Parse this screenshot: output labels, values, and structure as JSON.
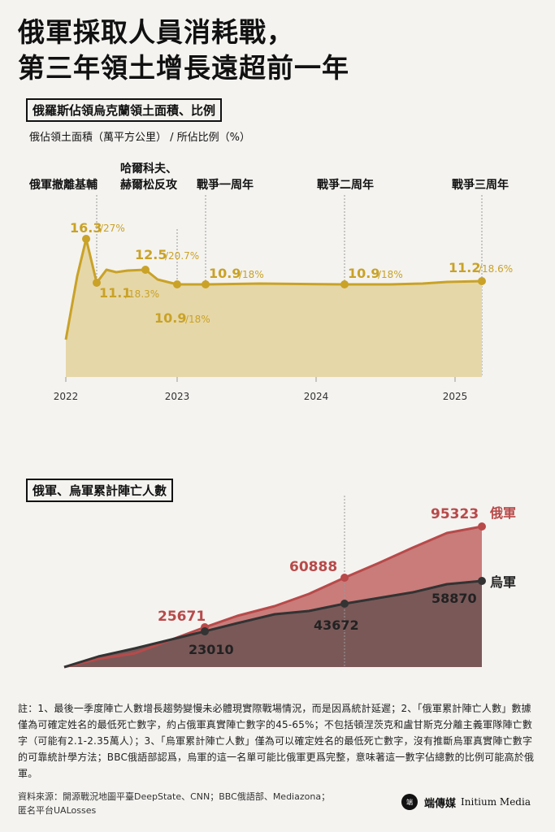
{
  "headline": {
    "line1": "俄軍採取人員消耗戰，",
    "line2": "第三年領土增長遠超前一年"
  },
  "colors": {
    "territory": "#c9a227",
    "territory_fill": "#e6d7a8",
    "russia": "#b84a4a",
    "russia_fill": "#c97c7a",
    "ukraine": "#333333",
    "ukraine_fill": "#7a5858",
    "guide": "#999999"
  },
  "territory_chart": {
    "section_title": "俄羅斯佔領烏克蘭領土面積、比例",
    "subtitle": "俄佔領土面積（萬平方公里） / 所佔比例（%）",
    "events": {
      "withdraw": "俄軍撤離基輔",
      "counter_1": "哈爾科夫、",
      "counter_2": "赫爾松反攻",
      "year1": "戰爭一周年",
      "year2": "戰爭二周年",
      "year3": "戰爭三周年"
    },
    "x_ticks": [
      "2022",
      "2023",
      "2024",
      "2025"
    ],
    "labels": {
      "l1_val": "16.3",
      "l1_pct": "/27%",
      "l2_val": "11.1",
      "l2_pct": "/18.3%",
      "l3_val": "12.5",
      "l3_pct": "/20.7%",
      "l4_val": "10.9",
      "l4_pct": "/18%",
      "l5_val": "10.9",
      "l5_pct": "/18%",
      "l6_val": "10.9",
      "l6_pct": "/18%",
      "l7_val": "11.2",
      "l7_pct": "/18.6%"
    }
  },
  "casualty_chart": {
    "section_title": "俄軍、烏軍累計陣亡人數",
    "russia_name": "俄軍",
    "ukraine_name": "烏軍",
    "russia_labels": [
      "25671",
      "60888",
      "95323"
    ],
    "ukraine_labels": [
      "23010",
      "43672",
      "58870"
    ]
  },
  "chart_data": [
    {
      "type": "area",
      "title": "俄羅斯佔領烏克蘭領土面積、比例",
      "ylabel": "俄佔領土面積（萬平方公里） / 所佔比例（%）",
      "x_ticks": [
        "2022",
        "2023",
        "2024",
        "2025"
      ],
      "series": [
        {
          "x": [
            "2022-02-24",
            "2022-03-10",
            "2022-03-24",
            "2022-04-07",
            "2022-04-21",
            "2022-05-05",
            "2022-06-01",
            "2022-07-01",
            "2022-08-01",
            "2022-09-01",
            "2022-09-15",
            "2022-10-01",
            "2022-11-01",
            "2022-11-11",
            "2022-12-15",
            "2023-02-24",
            "2023-06-01",
            "2023-10-01",
            "2024-02-24",
            "2024-06-01",
            "2024-10-01",
            "2025-01-01",
            "2025-02-24"
          ],
          "y": [
            2.0,
            8.5,
            14.5,
            16.3,
            13.0,
            11.1,
            13.1,
            12.8,
            13.0,
            12.5,
            12.5,
            11.3,
            11.0,
            10.9,
            10.9,
            10.9,
            10.95,
            10.9,
            10.9,
            10.9,
            11.0,
            11.15,
            11.2
          ]
        }
      ],
      "annotations": [
        {
          "x": "2022-03-30",
          "value": 16.3,
          "percent": "27%"
        },
        {
          "x": "2022-04-01",
          "value": 11.1,
          "percent": "18.3%"
        },
        {
          "x": "2022-09-01",
          "value": 12.5,
          "percent": "20.7%"
        },
        {
          "x": "2022-11-11",
          "value": 10.9,
          "percent": "18%"
        },
        {
          "x": "2023-02-24",
          "value": 10.9,
          "percent": "18%"
        },
        {
          "x": "2024-02-24",
          "value": 10.9,
          "percent": "18%"
        },
        {
          "x": "2025-02-24",
          "value": 11.2,
          "percent": "18.6%"
        }
      ],
      "events": [
        {
          "x": "2022-04-01",
          "label": "俄軍撤離基輔"
        },
        {
          "x": "2022-11-11",
          "label": "哈爾科夫、赫爾松反攻"
        },
        {
          "x": "2023-02-24",
          "label": "戰爭一周年"
        },
        {
          "x": "2024-02-24",
          "label": "戰爭二周年"
        },
        {
          "x": "2025-02-24",
          "label": "戰爭三周年"
        }
      ]
    },
    {
      "type": "area",
      "title": "俄軍、烏軍累計陣亡人數",
      "series": [
        {
          "name": "俄軍",
          "x": [
            "2022-02-24",
            "2022-06-01",
            "2022-10-01",
            "2023-02-24",
            "2023-07-01",
            "2023-11-01",
            "2024-02-24",
            "2024-07-01",
            "2024-11-01",
            "2025-01-01",
            "2025-02-24"
          ],
          "y": [
            0,
            7000,
            13500,
            25671,
            37500,
            47000,
            60888,
            75000,
            88000,
            93000,
            95323
          ]
        },
        {
          "name": "烏軍",
          "x": [
            "2022-02-24",
            "2022-06-01",
            "2022-10-01",
            "2023-02-24",
            "2023-07-01",
            "2023-11-01",
            "2024-02-24",
            "2024-07-01",
            "2024-11-01",
            "2025-01-01",
            "2025-02-24"
          ],
          "y": [
            0,
            10500,
            16000,
            23010,
            30500,
            37500,
            43672,
            50000,
            55500,
            57800,
            58870
          ]
        }
      ]
    }
  ],
  "note": "註：1、最後一季度陣亡人數增長趨勢變慢未必體現實際戰場情況，而是因爲統計延遲；2、「俄軍累計陣亡人數」數據僅為可確定姓名的最低死亡數字，約占俄軍真實陣亡數字的45-65%；不包括頓涅茨克和盧甘斯克分離主義軍隊陣亡數字（可能有2.1-2.35萬人）；3、「烏軍累計陣亡人數」僅為可以確定姓名的最低死亡數字，沒有推斷烏軍真實陣亡數字的可靠統計學方法；BBC俄語部認爲，烏軍的這一名單可能比俄軍更爲完整，意味著這一數字佔總數的比例可能高於俄軍。",
  "source_1": "資料來源：開源戰況地圖平臺DeepState、CNN；BBC俄語部、Mediazona；",
  "source_2": "匿名平台UALosses",
  "logo": {
    "mark": "端",
    "zh": "端傳媒",
    "en": "Initium Media"
  }
}
